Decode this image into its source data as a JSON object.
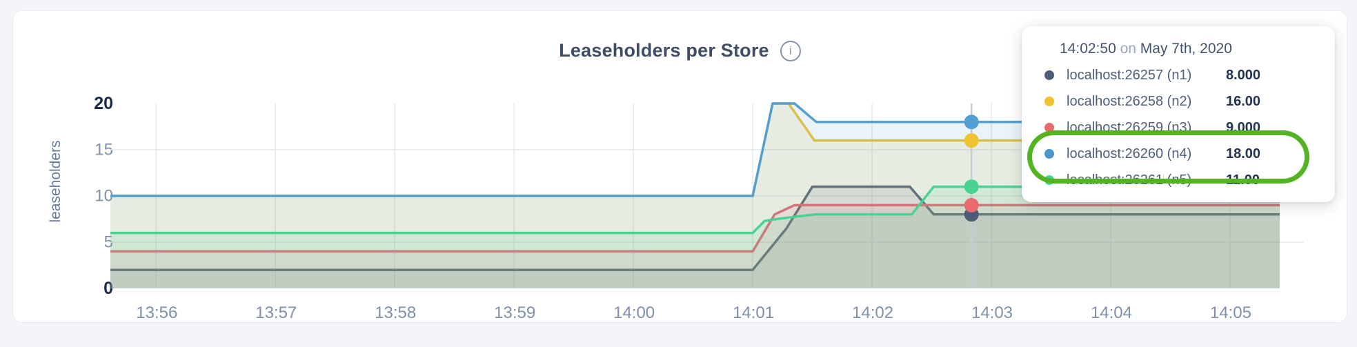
{
  "header": {
    "title": "Leaseholders per Store",
    "info_icon_glyph": "i"
  },
  "chart_data": {
    "type": "area",
    "title": "Leaseholders per Store",
    "xlabel": "",
    "ylabel": "leaseholders",
    "ylim": [
      0,
      20
    ],
    "grid": true,
    "legend_position": "tooltip-top-right",
    "x_unit": "seconds after 13:55:00",
    "x_domain": [
      37,
      625
    ],
    "y_ticks": [
      {
        "value": 0,
        "label": "0",
        "emph": true
      },
      {
        "value": 5,
        "label": "5",
        "emph": false
      },
      {
        "value": 10,
        "label": "10",
        "emph": false
      },
      {
        "value": 15,
        "label": "15",
        "emph": false
      },
      {
        "value": 20,
        "label": "20",
        "emph": true
      }
    ],
    "x_ticks": [
      {
        "t": 60,
        "label": "13:56"
      },
      {
        "t": 120,
        "label": "13:57"
      },
      {
        "t": 180,
        "label": "13:58"
      },
      {
        "t": 240,
        "label": "13:59"
      },
      {
        "t": 300,
        "label": "14:00"
      },
      {
        "t": 360,
        "label": "14:01"
      },
      {
        "t": 420,
        "label": "14:02"
      },
      {
        "t": 480,
        "label": "14:03"
      },
      {
        "t": 540,
        "label": "14:04"
      },
      {
        "t": 600,
        "label": "14:05"
      }
    ],
    "gridline_y_values": [
      5,
      10,
      15
    ],
    "series": [
      {
        "name": "localhost:26257 (n1)",
        "color": "#4e5d77",
        "points": [
          [
            37,
            2
          ],
          [
            360,
            2
          ],
          [
            377,
            6.5
          ],
          [
            390,
            11
          ],
          [
            439,
            11
          ],
          [
            451,
            8
          ],
          [
            625,
            8
          ]
        ]
      },
      {
        "name": "localhost:26258 (n2)",
        "color": "#eec434",
        "points": [
          [
            37,
            10
          ],
          [
            360,
            10
          ],
          [
            370,
            20
          ],
          [
            378,
            20
          ],
          [
            391,
            16
          ],
          [
            625,
            16
          ]
        ]
      },
      {
        "name": "localhost:26259 (n3)",
        "color": "#ea6b6d",
        "points": [
          [
            37,
            4
          ],
          [
            360,
            4
          ],
          [
            371,
            8
          ],
          [
            381,
            9
          ],
          [
            625,
            9
          ]
        ]
      },
      {
        "name": "localhost:26260 (n4)",
        "color": "#539fd2",
        "points": [
          [
            37,
            10
          ],
          [
            360,
            10
          ],
          [
            370,
            20
          ],
          [
            381,
            20
          ],
          [
            392,
            18
          ],
          [
            625,
            18
          ]
        ]
      },
      {
        "name": "localhost:26261 (n5)",
        "color": "#48d392",
        "points": [
          [
            37,
            6
          ],
          [
            360,
            6
          ],
          [
            366,
            7.3
          ],
          [
            372,
            7.5
          ],
          [
            391,
            8
          ],
          [
            440,
            8
          ],
          [
            451,
            11
          ],
          [
            625,
            11
          ]
        ]
      }
    ],
    "hover": {
      "t": 470,
      "values": [
        8,
        16,
        9,
        18,
        11
      ]
    }
  },
  "tooltip": {
    "time": "14:02:50",
    "conj": "on",
    "date": "May 7th, 2020",
    "rows": [
      {
        "name": "localhost:26257 (n1)",
        "value": "8.000",
        "color": "#4e5d77",
        "highlighted": false
      },
      {
        "name": "localhost:26258 (n2)",
        "value": "16.00",
        "color": "#f2c12e",
        "highlighted": false
      },
      {
        "name": "localhost:26259 (n3)",
        "value": "9.000",
        "color": "#ea6b6d",
        "highlighted": false
      },
      {
        "name": "localhost:26260 (n4)",
        "value": "18.00",
        "color": "#4b97cc",
        "highlighted": true
      },
      {
        "name": "localhost:26261 (n5)",
        "value": "11.00",
        "color": "#48d392",
        "highlighted": true
      }
    ],
    "annotation_color": "#53b320"
  },
  "colors": {
    "page_bg": "#f3f5f8",
    "card_bg": "#ffffff",
    "card_border": "#e8ecf2",
    "grid": "#e4e8ed",
    "hover_line": "#c7ccd2",
    "fill_opacity": 0.13
  }
}
